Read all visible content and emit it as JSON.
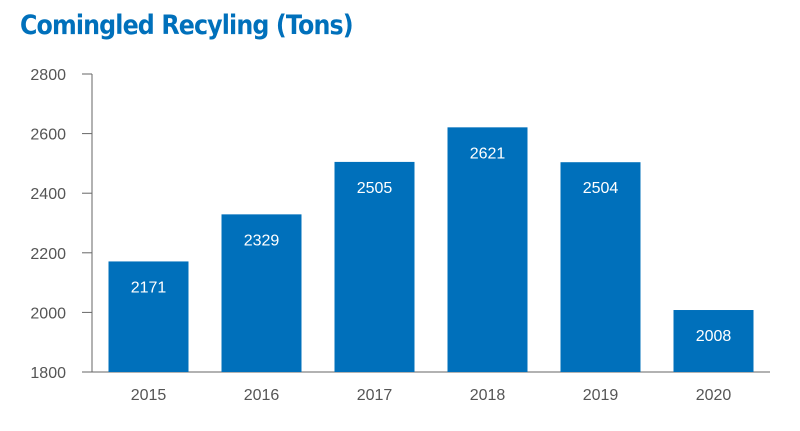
{
  "chart_data": {
    "type": "bar",
    "title": "Comingled Recyling (Tons)",
    "xlabel": "",
    "ylabel": "",
    "categories": [
      "2015",
      "2016",
      "2017",
      "2018",
      "2019",
      "2020"
    ],
    "values": [
      2171,
      2329,
      2505,
      2621,
      2504,
      2008
    ],
    "data_labels": [
      "2171",
      "2329",
      "2505",
      "2621",
      "2504",
      "2008"
    ],
    "ylim": [
      1800,
      2800
    ],
    "yticks": [
      1800,
      2000,
      2200,
      2400,
      2600,
      2800
    ],
    "ytick_labels": [
      "1800",
      "2000",
      "2200",
      "2400",
      "2600",
      "2800"
    ],
    "grid": false,
    "legend": "none"
  },
  "colors": {
    "bar": "#0070bb",
    "title": "#0070bb",
    "axis": "#666666",
    "data_label": "#ffffff"
  }
}
